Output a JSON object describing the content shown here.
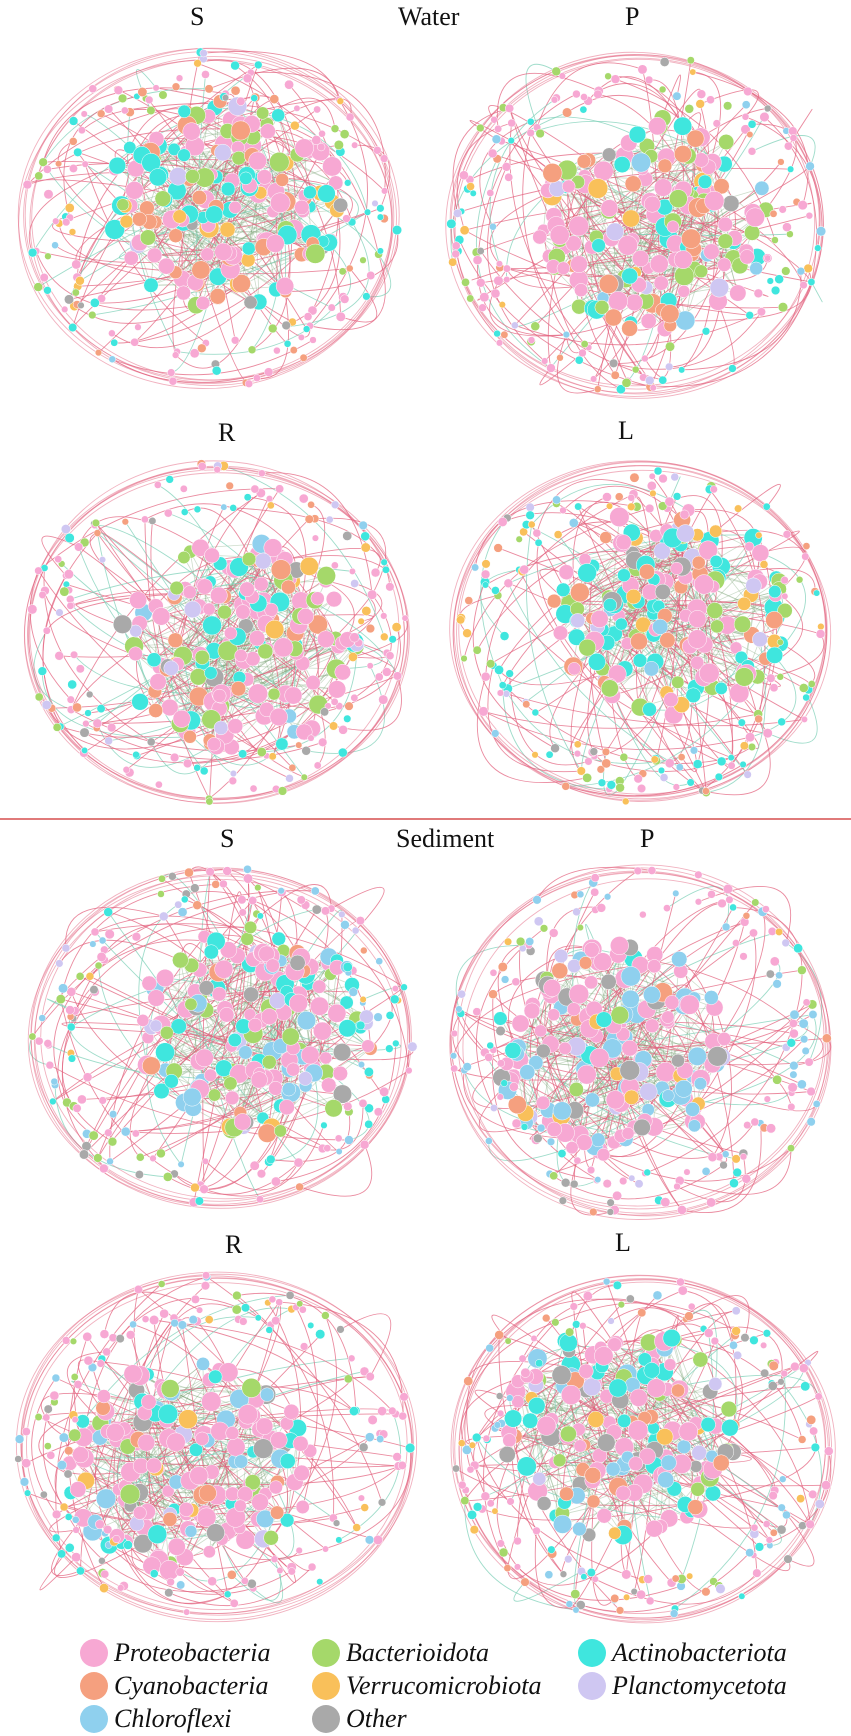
{
  "sections": [
    {
      "title": "Water",
      "networks": [
        {
          "label": "S"
        },
        {
          "label": "P"
        },
        {
          "label": "R"
        },
        {
          "label": "L"
        }
      ]
    },
    {
      "title": "Sediment",
      "networks": [
        {
          "label": "S"
        },
        {
          "label": "P"
        },
        {
          "label": "R"
        },
        {
          "label": "L"
        }
      ]
    }
  ],
  "legend": [
    {
      "name": "Proteobacteria",
      "color": "#f7a8d3"
    },
    {
      "name": "Bacterioidota",
      "color": "#a5d86a"
    },
    {
      "name": "Actinobacteriota",
      "color": "#3fe6de"
    },
    {
      "name": "Cyanobacteria",
      "color": "#f5a07f"
    },
    {
      "name": "Verrucomicrobiota",
      "color": "#f9c05a"
    },
    {
      "name": "Planctomycetota",
      "color": "#cfc7f2"
    },
    {
      "name": "Chloroflexi",
      "color": "#8fd0ee"
    },
    {
      "name": "Other",
      "color": "#a9a9a9"
    }
  ],
  "edge_colors": {
    "positive": "#e3637f",
    "negative": "#7fd0b8",
    "dense": "#6f9a6a"
  },
  "networks": [
    {
      "id": "water-S",
      "weights": [
        0.38,
        0.12,
        0.16,
        0.16,
        0.08,
        0.04,
        0.02,
        0.04
      ]
    },
    {
      "id": "water-P",
      "weights": [
        0.4,
        0.14,
        0.18,
        0.12,
        0.04,
        0.04,
        0.05,
        0.03
      ]
    },
    {
      "id": "water-R",
      "weights": [
        0.45,
        0.12,
        0.16,
        0.12,
        0.05,
        0.04,
        0.02,
        0.04
      ]
    },
    {
      "id": "water-L",
      "weights": [
        0.36,
        0.16,
        0.22,
        0.08,
        0.08,
        0.04,
        0.02,
        0.04
      ]
    },
    {
      "id": "sediment-S",
      "weights": [
        0.34,
        0.14,
        0.14,
        0.06,
        0.04,
        0.05,
        0.15,
        0.08
      ]
    },
    {
      "id": "sediment-P",
      "weights": [
        0.4,
        0.04,
        0.1,
        0.04,
        0.05,
        0.04,
        0.25,
        0.08
      ]
    },
    {
      "id": "sediment-R",
      "weights": [
        0.5,
        0.08,
        0.14,
        0.04,
        0.03,
        0.03,
        0.12,
        0.06
      ]
    },
    {
      "id": "sediment-L",
      "weights": [
        0.38,
        0.08,
        0.16,
        0.08,
        0.04,
        0.04,
        0.12,
        0.1
      ]
    }
  ]
}
